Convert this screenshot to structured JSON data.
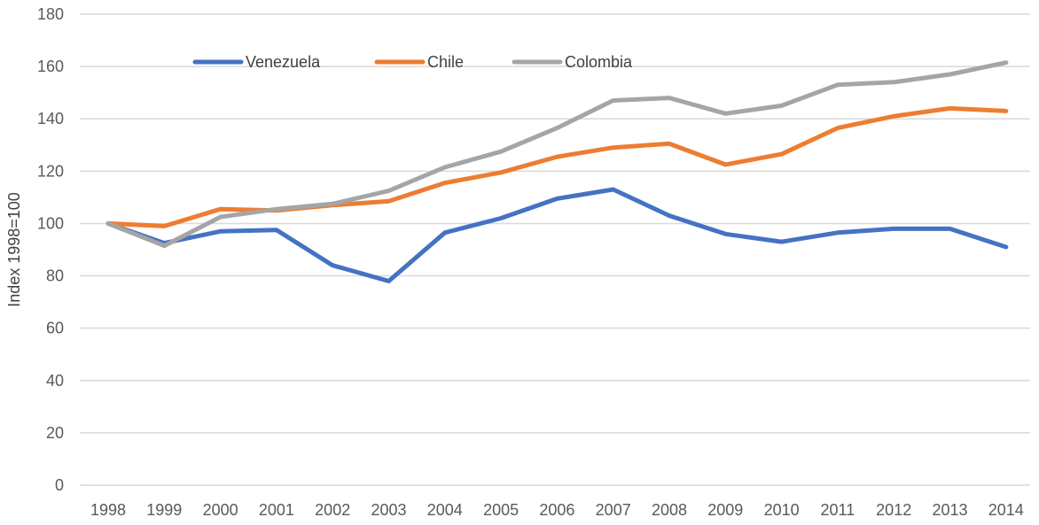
{
  "chart_data": {
    "type": "line",
    "title": "",
    "xlabel": "",
    "ylabel": "Index 1998=100",
    "ylim": [
      0,
      180
    ],
    "yticks": [
      0,
      20,
      40,
      60,
      80,
      100,
      120,
      140,
      160,
      180
    ],
    "grid": true,
    "legend_position": "top",
    "categories": [
      "1998",
      "1999",
      "2000",
      "2001",
      "2002",
      "2003",
      "2004",
      "2005",
      "2006",
      "2007",
      "2008",
      "2009",
      "2010",
      "2011",
      "2012",
      "2013",
      "2014"
    ],
    "series": [
      {
        "name": "Venezuela",
        "color": "#4472c4",
        "values": [
          100,
          92.5,
          97,
          97.5,
          84,
          78,
          96.5,
          102,
          109.5,
          113,
          103,
          96,
          93,
          96.5,
          98,
          98,
          91
        ]
      },
      {
        "name": "Chile",
        "color": "#ed7d31",
        "values": [
          100,
          99,
          105.5,
          105,
          107,
          108.5,
          115.5,
          119.5,
          125.5,
          129,
          130.5,
          122.5,
          126.5,
          136.5,
          141,
          144,
          143
        ]
      },
      {
        "name": "Colombia",
        "color": "#a5a5a5",
        "values": [
          100,
          91.5,
          102.5,
          105.5,
          107.5,
          112.5,
          121.5,
          127.5,
          136.5,
          147,
          148,
          142,
          145,
          153,
          154,
          157,
          161.5
        ]
      }
    ]
  }
}
